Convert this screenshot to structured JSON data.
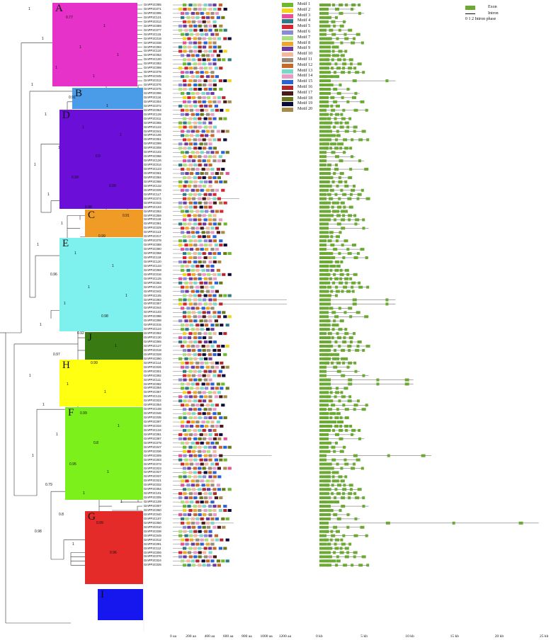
{
  "clades": [
    {
      "id": "A",
      "color": "#e632c8"
    },
    {
      "id": "B",
      "color": "#4a9be8"
    },
    {
      "id": "D",
      "color": "#6a0ed8"
    },
    {
      "id": "C",
      "color": "#ef9b26"
    },
    {
      "id": "E",
      "color": "#7ef0ee"
    },
    {
      "id": "J",
      "color": "#3a7a12"
    },
    {
      "id": "H",
      "color": "#ffff12"
    },
    {
      "id": "F",
      "color": "#7cf01a"
    },
    {
      "id": "G",
      "color": "#e52a2a"
    },
    {
      "id": "I",
      "color": "#1616ee"
    }
  ],
  "genes": [
    "GmPP2C085",
    "GmPP2C071",
    "GmPP2C095",
    "GmPP2C121",
    "GmPP2C013",
    "GmPP2C089",
    "GmPP2C077",
    "GmPP2C115",
    "GmPP2C019",
    "GmPP2C038",
    "GmPP2C093",
    "GmPP2C110",
    "GmPP2C053",
    "GmPP2C100",
    "GmPP2C082",
    "GmPP2C098",
    "GmPP2C078",
    "GmPP2C045",
    "GmPP2C012",
    "GmPP2C076",
    "GmPP2C075",
    "GmPP2C096",
    "GmPP2C116",
    "GmPP2C004",
    "GmPP2C072",
    "GmPP2C064",
    "GmPP2C128",
    "GmPP2C011",
    "GmPP2C055",
    "GmPP2C122",
    "GmPP2C041",
    "GmPP2C106",
    "GmPP2C051",
    "GmPP2C099",
    "GmPP2C008",
    "GmPP2C102",
    "GmPP2C066",
    "GmPP2C126",
    "GmPP2C014",
    "GmPP2C123",
    "GmPP2C061",
    "GmPP2C084",
    "GmPP2C068",
    "GmPP2C132",
    "GmPP2C039",
    "GmPP2C117",
    "GmPP2C074",
    "GmPP2C043",
    "GmPP2C104",
    "GmPP2C052",
    "GmPP2C059",
    "GmPP2C118",
    "GmPP2C081",
    "GmPP2C029",
    "GmPP2C113",
    "GmPP2C017",
    "GmPP2C078",
    "GmPP2C088",
    "GmPP2C080",
    "GmPP2C058",
    "GmPP2C119",
    "GmPP2C120",
    "GmPP2C133",
    "GmPP2C069",
    "GmPP2C016",
    "GmPP2C125",
    "GmPP2C063",
    "GmPP2C129",
    "GmPP2C042",
    "GmPP2C105",
    "GmPP2C092",
    "GmPP2C057",
    "GmPP2C044",
    "GmPP2C103",
    "GmPP2C086",
    "GmPP2C098",
    "GmPP2C015",
    "GmPP2C124",
    "GmPP2C062",
    "GmPP2C130",
    "GmPP2C065",
    "GmPP2C127",
    "GmPP2C018",
    "GmPP2C028",
    "GmPP2C090",
    "GmPP2C114",
    "GmPP2C026",
    "GmPP2C001",
    "GmPP2C092",
    "GmPP2C111",
    "GmPP2C082",
    "GmPP2C094",
    "GmPP2C067",
    "GmPP2C131",
    "GmPP2C022",
    "GmPP2C054",
    "GmPP2C108",
    "GmPP2C046",
    "GmPP2C035",
    "GmPP2C097",
    "GmPP2C034",
    "GmPP2C134",
    "GmPP2C081",
    "GmPP2C087",
    "GmPP2C079",
    "GmPP2C047",
    "GmPP2C036",
    "GmPP2C009",
    "GmPP2C003",
    "GmPP2C073",
    "GmPP2C023",
    "GmPP2C027",
    "GmPP2C037",
    "GmPP2C021",
    "GmPP2C032",
    "GmPP2C054",
    "GmPP2C101",
    "GmPP2C005",
    "GmPP2C109",
    "GmPP2C007",
    "GmPP2C060",
    "GmPP2C040",
    "GmPP2C107",
    "GmPP2C050",
    "GmPP2C010",
    "GmPP2C038",
    "GmPP2C049",
    "GmPP2C012",
    "GmPP2C091",
    "GmPP2C112",
    "GmPP2C006",
    "GmPP2C076",
    "GmPP2C024",
    "GmPP2C025"
  ],
  "bootstrap": [
    "1",
    "0.77",
    "1",
    "1",
    "1",
    "1",
    "1",
    "1",
    "1",
    "0.91",
    "1",
    "1",
    "1",
    "1",
    "1",
    "0.5",
    "1",
    "0.99",
    "0.99",
    "1",
    "0.98",
    "0.91",
    "1",
    "0.99",
    "1",
    "1",
    "1",
    "0.96",
    "1",
    "1",
    "1",
    "0.98",
    "1",
    "0.92",
    "1",
    "0.97",
    "0.99",
    "1",
    "1",
    "1",
    "1",
    "0.99",
    "1",
    "1",
    "0.8",
    "1",
    "0.95",
    "1",
    "0.79",
    "1",
    "1",
    "0.8",
    "0.99",
    "0.98",
    "1",
    "0.96"
  ],
  "motifs": [
    {
      "name": "Motif 1",
      "color": "#6cb82e"
    },
    {
      "name": "Motif 2",
      "color": "#f2d41a"
    },
    {
      "name": "Motif 3",
      "color": "#e8509a"
    },
    {
      "name": "Motif 4",
      "color": "#2e7a86"
    },
    {
      "name": "Motif 5",
      "color": "#d8262e"
    },
    {
      "name": "Motif 6",
      "color": "#8a8ad8"
    },
    {
      "name": "Motif 7",
      "color": "#a8e07a"
    },
    {
      "name": "Motif 8",
      "color": "#f0a62a"
    },
    {
      "name": "Motif 9",
      "color": "#6a3aa0"
    },
    {
      "name": "Motif 10",
      "color": "#f2b8a0"
    },
    {
      "name": "Motif 11",
      "color": "#9a8a7a"
    },
    {
      "name": "Motif 12",
      "color": "#c8682a"
    },
    {
      "name": "Motif 13",
      "color": "#7ad8c8"
    },
    {
      "name": "Motif 14",
      "color": "#e89ac8"
    },
    {
      "name": "Motif 15",
      "color": "#2a62d8"
    },
    {
      "name": "Motif 16",
      "color": "#b8262a"
    },
    {
      "name": "Motif 17",
      "color": "#4a1a1a"
    },
    {
      "name": "Motif 18",
      "color": "#6a7a1a"
    },
    {
      "name": "Motif 19",
      "color": "#0a0a3a"
    },
    {
      "name": "Motif 20",
      "color": "#a88a4a"
    }
  ],
  "exon_legend": {
    "exon": "Exon",
    "intron": "Intron",
    "phase": "0 1 2  Intron phase",
    "exon_color": "#6aaa32"
  },
  "axis_protein": [
    "0 aa",
    "200 aa",
    "400 aa",
    "600 aa",
    "800 aa",
    "1000 aa",
    "1200 aa"
  ],
  "axis_gene": [
    "0 kb",
    "5 kb",
    "10 kb",
    "15 kb",
    "20 kb",
    "25 kb"
  ]
}
